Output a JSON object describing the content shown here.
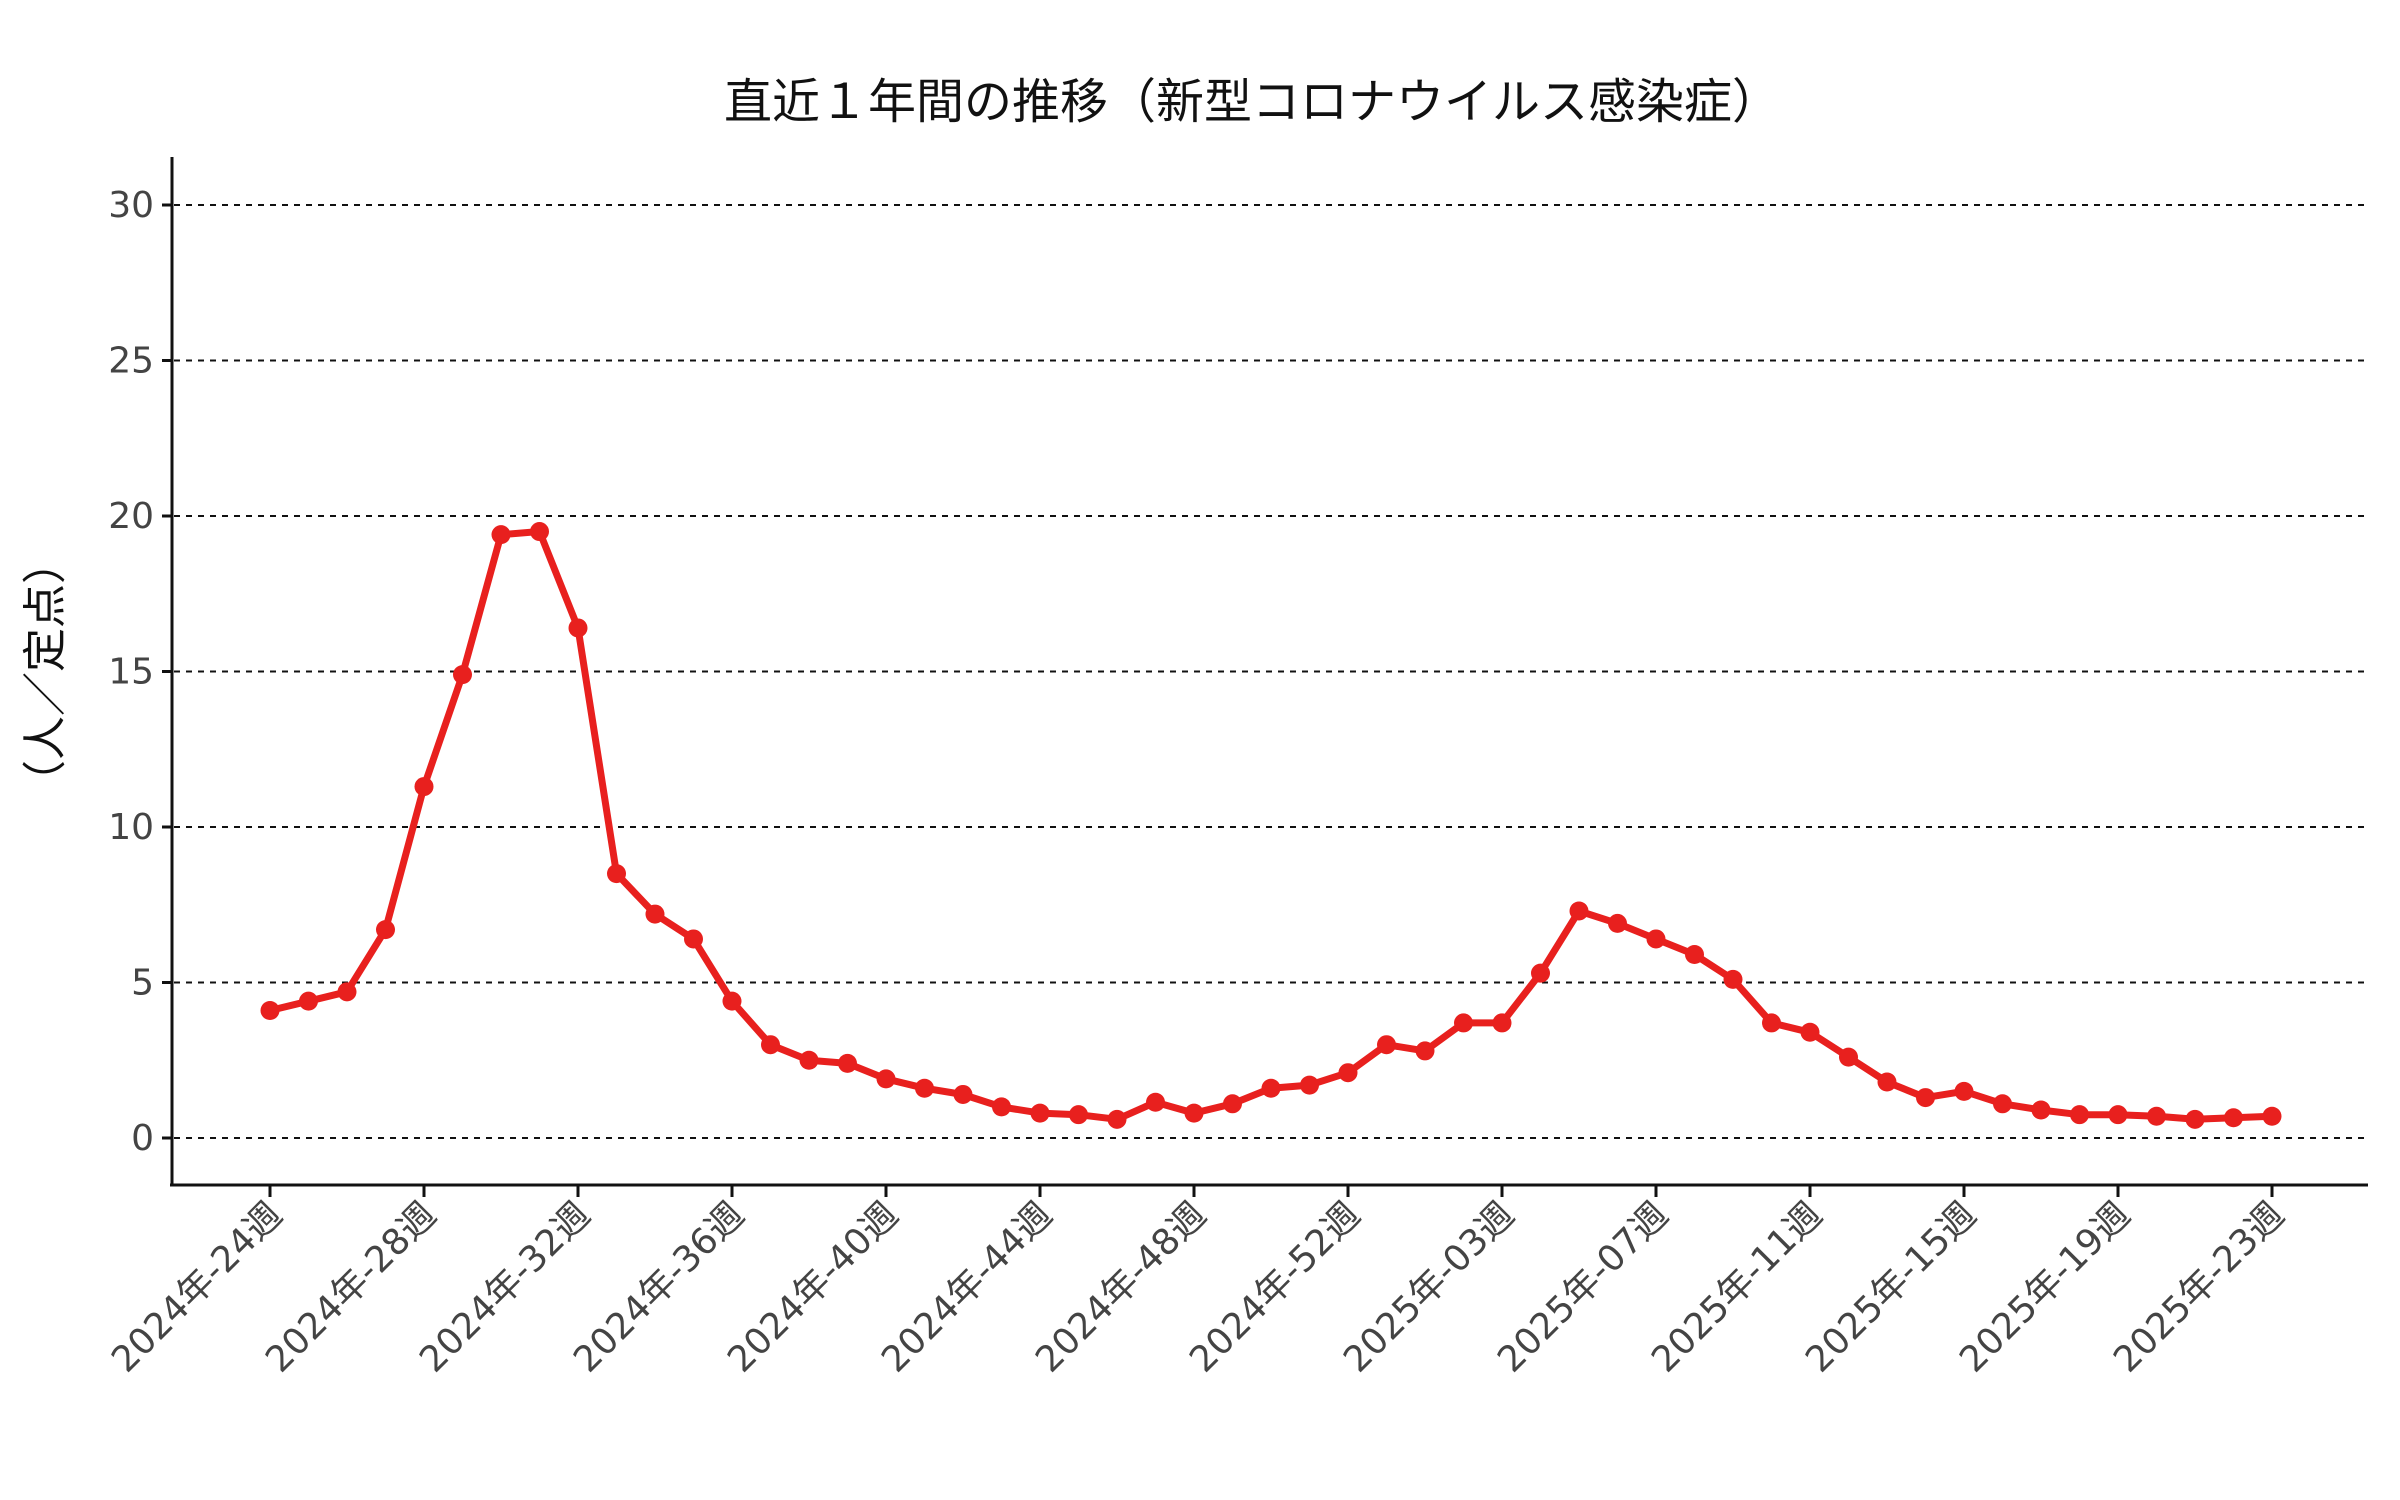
{
  "chart_data": {
    "type": "line",
    "title": "直近１年間の推移（新型コロナウイルス感染症）",
    "xlabel": "",
    "ylabel": "（人／定点）",
    "ylim": [
      -1.5,
      31.5
    ],
    "yticks": [
      0,
      5,
      10,
      15,
      20,
      25,
      30
    ],
    "grid": "horizontal dashed",
    "legend": "none",
    "color": "#e8201e",
    "x_tick_labels": [
      "2024年-24週",
      "2024年-28週",
      "2024年-32週",
      "2024年-36週",
      "2024年-40週",
      "2024年-44週",
      "2024年-48週",
      "2024年-52週",
      "2025年-03週",
      "2025年-07週",
      "2025年-11週",
      "2025年-15週",
      "2025年-19週",
      "2025年-23週"
    ],
    "x_tick_every": 4,
    "series": [
      {
        "values": [
          4.1,
          4.4,
          4.7,
          6.7,
          11.3,
          14.9,
          19.4,
          19.5,
          16.4,
          8.5,
          7.2,
          6.4,
          4.4,
          3.0,
          2.5,
          2.4,
          1.9,
          1.6,
          1.4,
          1.0,
          0.8,
          0.75,
          0.6,
          1.15,
          0.8,
          1.1,
          1.6,
          1.7,
          2.1,
          3.0,
          2.8,
          3.7,
          3.7,
          5.3,
          7.3,
          6.9,
          6.4,
          5.9,
          5.1,
          3.7,
          3.4,
          2.6,
          1.8,
          1.3,
          1.5,
          1.1,
          0.9,
          0.75,
          0.75,
          0.7,
          0.6,
          0.65,
          0.7
        ]
      }
    ]
  }
}
